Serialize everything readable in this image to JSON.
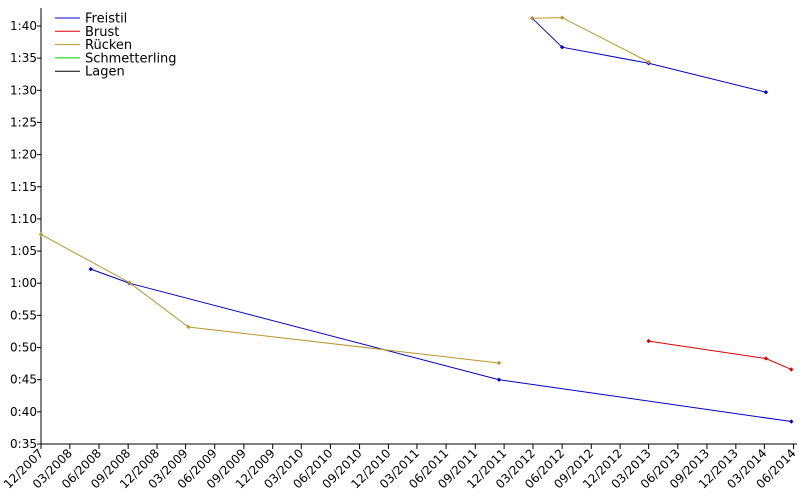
{
  "chart_data": {
    "type": "line",
    "title": "",
    "xlabel": "",
    "ylabel": "",
    "grid": false,
    "legend_position": "top-left",
    "x_type": "date",
    "xlim": [
      "2007-12-01",
      "2014-06-12"
    ],
    "ylim": [
      "0:35",
      "1:40"
    ],
    "y_ticks": [
      "0:35",
      "0:40",
      "0:45",
      "0:50",
      "0:55",
      "1:00",
      "1:05",
      "1:10",
      "1:15",
      "1:20",
      "1:25",
      "1:30",
      "1:35",
      "1:40"
    ],
    "x_ticks": [
      {
        "label": "12/2007",
        "date": "2007-12-01"
      },
      {
        "label": "03/2008",
        "date": "2008-03-01"
      },
      {
        "label": "06/2008",
        "date": "2008-06-01"
      },
      {
        "label": "09/2008",
        "date": "2008-09-01"
      },
      {
        "label": "12/2008",
        "date": "2008-12-01"
      },
      {
        "label": "03/2009",
        "date": "2009-03-01"
      },
      {
        "label": "06/2009",
        "date": "2009-06-01"
      },
      {
        "label": "09/2009",
        "date": "2009-09-01"
      },
      {
        "label": "12/2009",
        "date": "2009-12-01"
      },
      {
        "label": "03/2010",
        "date": "2010-03-01"
      },
      {
        "label": "06/2010",
        "date": "2010-06-01"
      },
      {
        "label": "09/2010",
        "date": "2010-09-01"
      },
      {
        "label": "12/2010",
        "date": "2010-12-01"
      },
      {
        "label": "03/2011",
        "date": "2011-03-01"
      },
      {
        "label": "06/2011",
        "date": "2011-06-01"
      },
      {
        "label": "09/2011",
        "date": "2011-09-01"
      },
      {
        "label": "12/2011",
        "date": "2011-12-01"
      },
      {
        "label": "03/2012",
        "date": "2012-03-01"
      },
      {
        "label": "06/2012",
        "date": "2012-06-01"
      },
      {
        "label": "09/2012",
        "date": "2012-09-01"
      },
      {
        "label": "12/2012",
        "date": "2012-12-01"
      },
      {
        "label": "03/2013",
        "date": "2013-03-01"
      },
      {
        "label": "06/2013",
        "date": "2013-06-01"
      },
      {
        "label": "09/2013",
        "date": "2013-09-01"
      },
      {
        "label": "12/2013",
        "date": "2013-12-01"
      },
      {
        "label": "03/2014",
        "date": "2014-03-01"
      },
      {
        "label": "06/2014",
        "date": "2014-06-01"
      }
    ],
    "series": [
      {
        "name": "Freistil",
        "color": "#0000cc",
        "segments": [
          [
            {
              "x": "2008-05-06",
              "y": "1:02.2"
            },
            {
              "x": "2008-09-05",
              "y": "1:00.0"
            },
            {
              "x": "2011-11-15",
              "y": "0:45.0"
            },
            {
              "x": "2014-05-25",
              "y": "0:38.5"
            }
          ],
          [
            {
              "x": "2012-02-28",
              "y": "1:41.2"
            },
            {
              "x": "2012-06-01",
              "y": "1:36.7"
            },
            {
              "x": "2013-03-01",
              "y": "1:34.2"
            },
            {
              "x": "2014-03-06",
              "y": "1:29.7"
            }
          ]
        ]
      },
      {
        "name": "Brust",
        "color": "#dd0000",
        "segments": [
          [
            {
              "x": "2013-03-01",
              "y": "0:51.0"
            },
            {
              "x": "2014-03-06",
              "y": "0:48.3"
            },
            {
              "x": "2014-05-25",
              "y": "0:46.6"
            }
          ]
        ]
      },
      {
        "name": "Rücken",
        "color": "#b8962e",
        "segments": [
          [
            {
              "x": "2007-12-01",
              "y": "1:07.6"
            },
            {
              "x": "2008-09-05",
              "y": "1:00.1"
            },
            {
              "x": "2009-03-10",
              "y": "0:53.2"
            },
            {
              "x": "2011-11-15",
              "y": "0:47.6"
            }
          ],
          [
            {
              "x": "2012-02-28",
              "y": "1:41.2"
            },
            {
              "x": "2012-06-01",
              "y": "1:41.3"
            },
            {
              "x": "2013-03-01",
              "y": "1:34.4"
            }
          ]
        ]
      },
      {
        "name": "Schmetterling",
        "color": "#00cc00",
        "segments": []
      },
      {
        "name": "Lagen",
        "color": "#000000",
        "segments": []
      }
    ]
  }
}
